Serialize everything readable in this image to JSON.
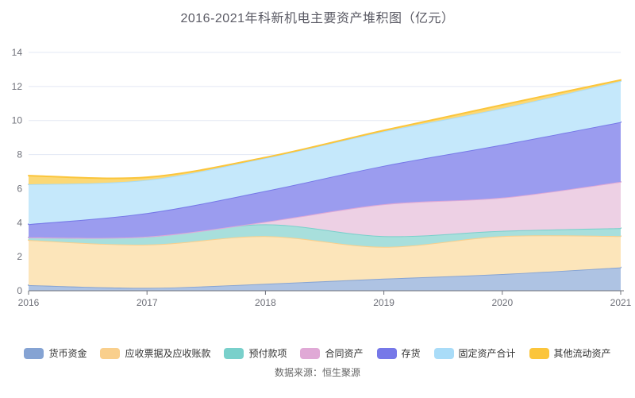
{
  "chart_data": {
    "type": "area",
    "stacked": true,
    "smooth": true,
    "title": "2016-2021年科新机电主要资产堆积图（亿元）",
    "categories": [
      "2016",
      "2017",
      "2018",
      "2019",
      "2020",
      "2021"
    ],
    "series": [
      {
        "name": "货币资金",
        "color": "#85A3D3",
        "fill": "#AEC3E3",
        "values": [
          0.33,
          0.17,
          0.41,
          0.71,
          0.98,
          1.37
        ]
      },
      {
        "name": "应收票据及应收账款",
        "color": "#F9CF8C",
        "fill": "#FCE5BA",
        "values": [
          2.65,
          2.54,
          2.8,
          1.87,
          2.23,
          1.84
        ]
      },
      {
        "name": "预付款项",
        "color": "#79D0CB",
        "fill": "#A8DFDC",
        "values": [
          0.15,
          0.47,
          0.69,
          0.63,
          0.31,
          0.47
        ]
      },
      {
        "name": "合同资产",
        "color": "#E0A9D6",
        "fill": "#EDD0E4",
        "values": [
          0.0,
          0.0,
          0.15,
          1.87,
          1.95,
          2.72
        ]
      },
      {
        "name": "存货",
        "color": "#7678E8",
        "fill": "#9B9CEF",
        "values": [
          0.78,
          1.38,
          1.81,
          2.26,
          3.11,
          3.51
        ]
      },
      {
        "name": "固定资产合计",
        "color": "#A9DCF8",
        "fill": "#C5E8FB",
        "values": [
          2.34,
          1.95,
          1.94,
          2.02,
          2.14,
          2.41
        ]
      },
      {
        "name": "其他流动资产",
        "color": "#FBC53B",
        "fill": "#FBD876",
        "values": [
          0.51,
          0.16,
          0.03,
          0.06,
          0.2,
          0.06
        ]
      }
    ],
    "xlabel": "",
    "ylabel": "",
    "ylim": [
      0,
      14
    ],
    "yticks": [
      0,
      2,
      4,
      6,
      8,
      10,
      12,
      14
    ],
    "grid": true,
    "legend_position": "bottom",
    "axis_label_color": "#6E7079",
    "grid_color": "#E3E8F4",
    "axis_line_color": "#6E7079",
    "source_note": "数据来源：恒生聚源"
  }
}
